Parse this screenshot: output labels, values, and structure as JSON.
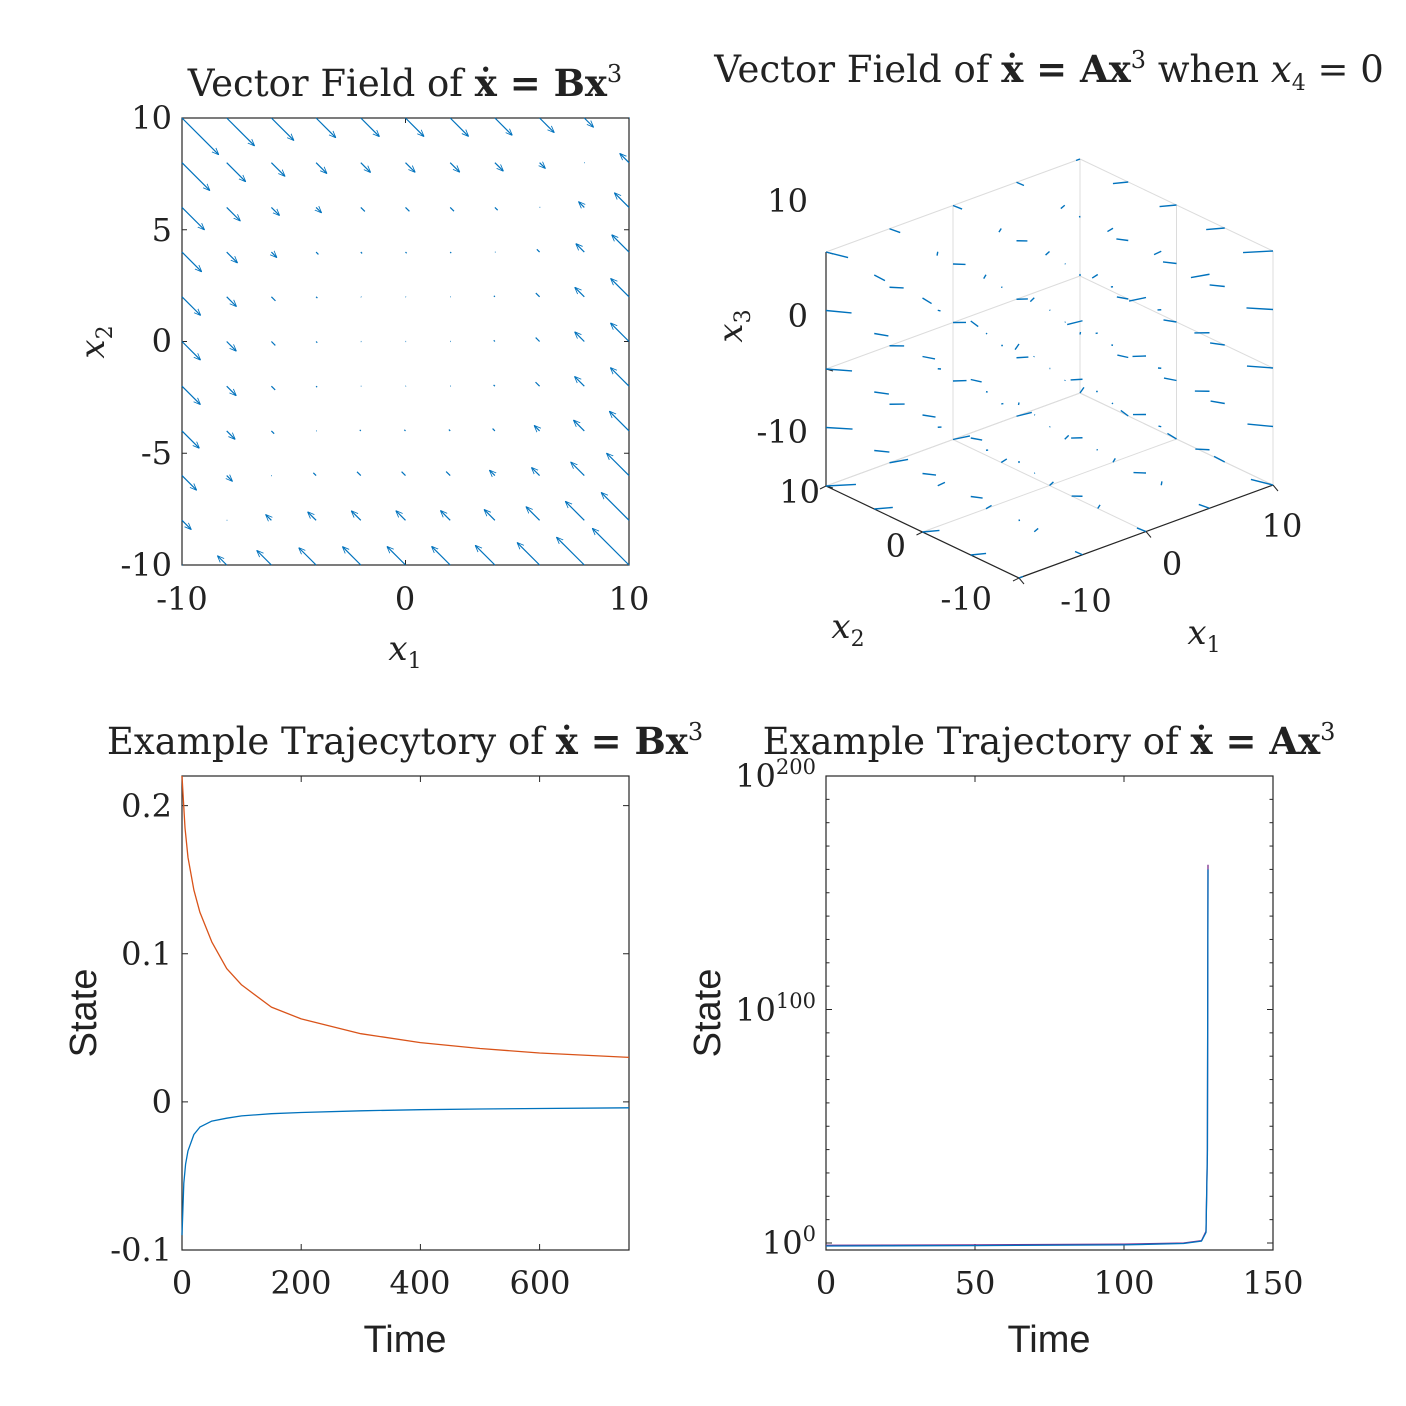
{
  "chart_data": [
    {
      "type": "quiver",
      "title": {
        "prefix": "Vector Field of ",
        "eq": "ẋ = Bx",
        "sup": "3",
        "suffix": ""
      },
      "xlabel": {
        "base": "x",
        "sub": "1"
      },
      "ylabel": {
        "base": "x",
        "sub": "2"
      },
      "xlim": [
        -10,
        10
      ],
      "ylim": [
        -10,
        10
      ],
      "xticks": [
        "-10",
        "0",
        "10"
      ],
      "yticks": [
        "10",
        "5",
        "0",
        "-5",
        "-10"
      ],
      "grid_points": [
        -10,
        -8,
        -6,
        -4,
        -2,
        0,
        2,
        4,
        6,
        8,
        10
      ],
      "field": "u = 0.5(y³ − x³), v = 0.5(x³ − y³)",
      "color": "#0072BD"
    },
    {
      "type": "quiver3d",
      "title": {
        "prefix": "Vector Field of ",
        "eq": "ẋ = Ax",
        "sup": "3",
        "suffix": " when ",
        "cond_base": "x",
        "cond_sub": "4",
        "cond_rest": " = 0"
      },
      "xlabel": {
        "base": "x",
        "sub": "1"
      },
      "ylabel": {
        "base": "x",
        "sub": "2"
      },
      "zlabel": {
        "base": "x",
        "sub": "3"
      },
      "xlim": [
        -10,
        10
      ],
      "ylim": [
        -10,
        10
      ],
      "zlim": [
        -10,
        10
      ],
      "xticks": [
        "-10",
        "0",
        "10"
      ],
      "yticks": [
        "10",
        "0",
        "-10"
      ],
      "zticks": [
        "10",
        "0",
        "-10"
      ],
      "grid": true,
      "color": "#0072BD"
    },
    {
      "type": "line",
      "title": {
        "prefix": "Example Trajecytory of ",
        "eq": "ẋ = Bx",
        "sup": "3",
        "suffix": ""
      },
      "xlabel": "Time",
      "ylabel": "State",
      "xlim": [
        0,
        750
      ],
      "ylim": [
        -0.1,
        0.22
      ],
      "xticks": [
        "0",
        "200",
        "400",
        "600"
      ],
      "yticks": [
        "0.2",
        "0.1",
        "0",
        "-0.1"
      ],
      "series": [
        {
          "color": "#D95319",
          "x": [
            0,
            5,
            10,
            20,
            30,
            50,
            75,
            100,
            150,
            200,
            300,
            400,
            500,
            600,
            750
          ],
          "y": [
            0.22,
            0.185,
            0.165,
            0.143,
            0.128,
            0.108,
            0.09,
            0.079,
            0.064,
            0.056,
            0.046,
            0.04,
            0.036,
            0.033,
            0.03
          ]
        },
        {
          "color": "#0072BD",
          "x": [
            0,
            3,
            6,
            10,
            20,
            30,
            50,
            75,
            100,
            150,
            200,
            300,
            400,
            500,
            600,
            750
          ],
          "y": [
            -0.09,
            -0.055,
            -0.042,
            -0.033,
            -0.022,
            -0.017,
            -0.013,
            -0.011,
            -0.0095,
            -0.008,
            -0.0072,
            -0.006,
            -0.0053,
            -0.0048,
            -0.0045,
            -0.004
          ]
        }
      ]
    },
    {
      "type": "line",
      "yscale": "log",
      "title": {
        "prefix": "Example Trajectory of ",
        "eq": "ẋ = Ax",
        "sup": "3",
        "suffix": ""
      },
      "xlabel": "Time",
      "ylabel": "State",
      "xlim": [
        0,
        150
      ],
      "ylim_exp": [
        -3,
        200
      ],
      "xticks": [
        "0",
        "50",
        "100",
        "150"
      ],
      "yticks": [
        {
          "base": "10",
          "exp": "200"
        },
        {
          "base": "10",
          "exp": "100"
        },
        {
          "base": "10",
          "exp": "0"
        }
      ],
      "series": [
        {
          "color": "#7E2F8E",
          "x": [
            0,
            50,
            100,
            120,
            126,
            127.5,
            128,
            128.2
          ],
          "y_exp": [
            -1,
            -0.8,
            -0.5,
            0,
            1,
            5,
            40,
            162
          ]
        },
        {
          "color": "#0072BD",
          "x": [
            0,
            50,
            100,
            120,
            126,
            127.5,
            128,
            128.2
          ],
          "y_exp": [
            -1.3,
            -1.1,
            -0.8,
            -0.2,
            0.8,
            4.5,
            38,
            160
          ]
        }
      ]
    }
  ]
}
